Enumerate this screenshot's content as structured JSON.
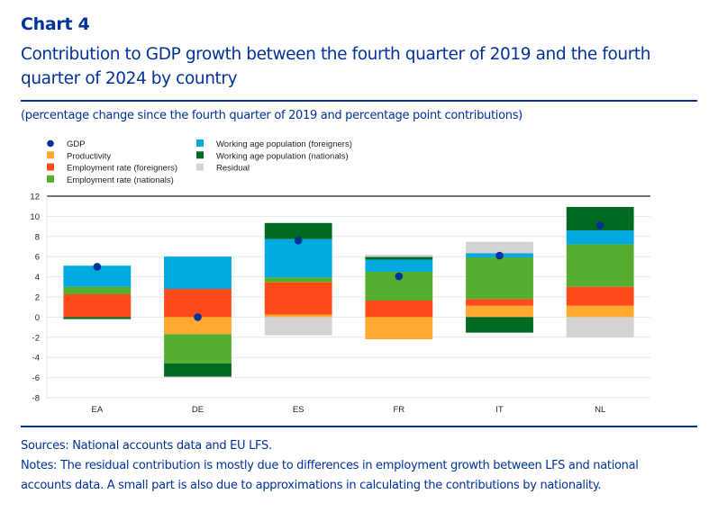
{
  "header": {
    "label": "Chart 4",
    "title": "Contribution to GDP growth between the fourth quarter of 2019 and the fourth quarter of 2024 by country",
    "subtitle": "(percentage change since the fourth quarter of 2019 and percentage point contributions)"
  },
  "footer": {
    "sources": "Sources: National accounts data and EU LFS.",
    "notes_line1": "Notes: The residual contribution is mostly due to differences in employment growth between LFS and national",
    "notes_line2": "accounts data. A small part is also due to approximations in calculating the contributions by nationality."
  },
  "chart_data": {
    "type": "bar",
    "stacked": true,
    "title": "Contribution to GDP growth between the fourth quarter of 2019 and the fourth quarter of 2024 by country",
    "xlabel": "",
    "ylabel": "percentage change / percentage points",
    "ylim": [
      -8,
      12
    ],
    "yticks": [
      12,
      10,
      8,
      6,
      4,
      2,
      0,
      -2,
      -4,
      -6,
      -8
    ],
    "grid": true,
    "legend_position": "top-left",
    "categories": [
      "EA",
      "DE",
      "ES",
      "FR",
      "IT",
      "NL"
    ],
    "series": [
      {
        "name": "Productivity",
        "color": "#FFA930",
        "values": [
          0.0,
          -1.7,
          0.24,
          -2.2,
          1.13,
          1.13
        ]
      },
      {
        "name": "Employment rate (foreigners)",
        "color": "#FF4B1A",
        "values": [
          2.27,
          2.8,
          3.22,
          1.64,
          0.66,
          1.87
        ]
      },
      {
        "name": "Employment rate (nationals)",
        "color": "#55AE2F",
        "values": [
          0.73,
          -2.9,
          0.47,
          2.86,
          4.14,
          4.23
        ]
      },
      {
        "name": "Working age population (foreigners)",
        "color": "#00A9E0",
        "values": [
          2.1,
          3.2,
          3.81,
          1.2,
          0.41,
          1.37
        ]
      },
      {
        "name": "Working age population (nationals)",
        "color": "#006A23",
        "values": [
          -0.2,
          -1.3,
          1.6,
          0.27,
          -1.54,
          2.33
        ]
      },
      {
        "name": "Residual",
        "color": "#D3D3D3",
        "values": [
          -0.05,
          -0.1,
          -1.8,
          0.24,
          1.13,
          -2.0
        ]
      }
    ],
    "markers": {
      "name": "GDP",
      "color": "#003299",
      "values": [
        5.0,
        0.0,
        7.6,
        4.05,
        6.1,
        9.1
      ]
    },
    "legend": [
      {
        "name": "GDP",
        "shape": "circle",
        "color": "#003299"
      },
      {
        "name": "Productivity",
        "shape": "square",
        "color": "#FFA930"
      },
      {
        "name": "Employment rate (foreigners)",
        "shape": "square",
        "color": "#FF4B1A"
      },
      {
        "name": "Employment rate (nationals)",
        "shape": "square",
        "color": "#55AE2F"
      },
      {
        "name": "Working age population (foreigners)",
        "shape": "square",
        "color": "#00A9E0"
      },
      {
        "name": "Working age population (nationals)",
        "shape": "square",
        "color": "#006A23"
      },
      {
        "name": "Residual",
        "shape": "square",
        "color": "#D3D3D3"
      }
    ]
  }
}
